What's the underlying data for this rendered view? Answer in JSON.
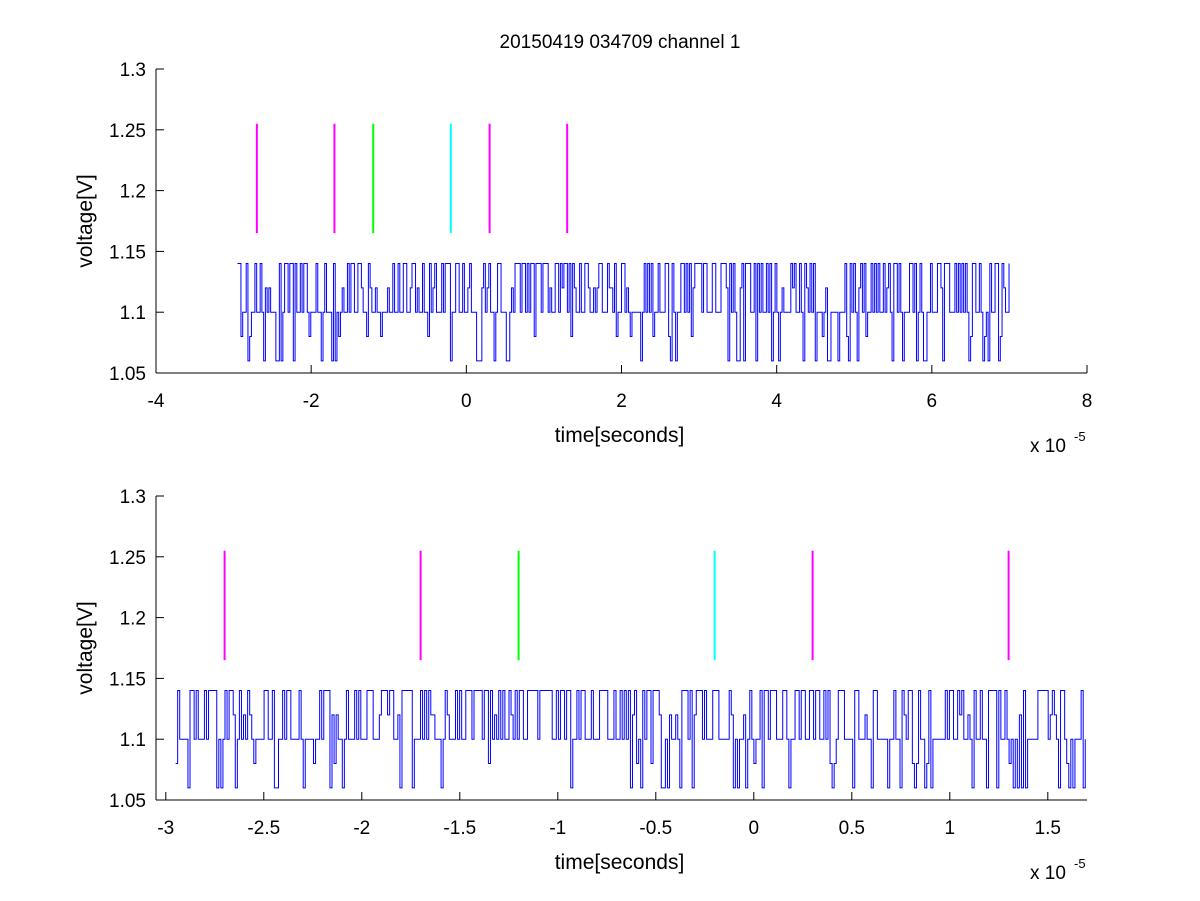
{
  "figure": {
    "title": "20150419 034709 channel 1"
  },
  "chart_data": [
    {
      "type": "line",
      "title": "20150419 034709 channel 1",
      "xlabel": "time[seconds]",
      "ylabel": "voltage[V]",
      "x_exponent_label": "x 10",
      "x_exponent_power": "-5",
      "xlim": [
        -4,
        8
      ],
      "ylim": [
        1.05,
        1.3
      ],
      "x_ticks": [
        -4,
        -2,
        0,
        2,
        4,
        6,
        8
      ],
      "x_tick_labels": [
        "-4",
        "-2",
        "0",
        "2",
        "4",
        "6",
        "8"
      ],
      "y_ticks": [
        1.05,
        1.1,
        1.15,
        1.2,
        1.25,
        1.3
      ],
      "y_tick_labels": [
        "1.05",
        "1.1",
        "1.15",
        "1.2",
        "1.25",
        "1.3"
      ],
      "grid": false,
      "signal": {
        "color": "#0000ff",
        "x_start": -2.95,
        "x_end": 7.0,
        "baseline": 1.1,
        "high": 1.14,
        "mid_high": 1.12,
        "low": 1.06,
        "mid_low": 1.08
      },
      "markers": [
        {
          "x": -2.7,
          "y0": 1.165,
          "y1": 1.255,
          "color": "#ff00ff"
        },
        {
          "x": -1.7,
          "y0": 1.165,
          "y1": 1.255,
          "color": "#ff00ff"
        },
        {
          "x": -1.2,
          "y0": 1.165,
          "y1": 1.255,
          "color": "#00ff00"
        },
        {
          "x": -0.2,
          "y0": 1.165,
          "y1": 1.255,
          "color": "#00ffff"
        },
        {
          "x": 0.3,
          "y0": 1.165,
          "y1": 1.255,
          "color": "#ff00ff"
        },
        {
          "x": 1.3,
          "y0": 1.165,
          "y1": 1.255,
          "color": "#ff00ff"
        }
      ]
    },
    {
      "type": "line",
      "title": "",
      "xlabel": "time[seconds]",
      "ylabel": "voltage[V]",
      "x_exponent_label": "x 10",
      "x_exponent_power": "-5",
      "xlim": [
        -3.05,
        1.7
      ],
      "ylim": [
        1.05,
        1.3
      ],
      "x_ticks": [
        -3,
        -2.5,
        -2,
        -1.5,
        -1,
        -0.5,
        0,
        0.5,
        1,
        1.5
      ],
      "x_tick_labels": [
        "-3",
        "-2.5",
        "-2",
        "-1.5",
        "-1",
        "-0.5",
        "0",
        "0.5",
        "1",
        "1.5"
      ],
      "y_ticks": [
        1.05,
        1.1,
        1.15,
        1.2,
        1.25,
        1.3
      ],
      "y_tick_labels": [
        "1.05",
        "1.1",
        "1.15",
        "1.2",
        "1.25",
        "1.3"
      ],
      "grid": false,
      "signal": {
        "color": "#0000ff",
        "x_start": -2.95,
        "x_end": 1.7,
        "baseline": 1.1,
        "high": 1.14,
        "mid_high": 1.12,
        "low": 1.06,
        "mid_low": 1.08
      },
      "markers": [
        {
          "x": -2.7,
          "y0": 1.165,
          "y1": 1.255,
          "color": "#ff00ff"
        },
        {
          "x": -1.7,
          "y0": 1.165,
          "y1": 1.255,
          "color": "#ff00ff"
        },
        {
          "x": -1.2,
          "y0": 1.165,
          "y1": 1.255,
          "color": "#00ff00"
        },
        {
          "x": -0.2,
          "y0": 1.165,
          "y1": 1.255,
          "color": "#00ffff"
        },
        {
          "x": 0.3,
          "y0": 1.165,
          "y1": 1.255,
          "color": "#ff00ff"
        },
        {
          "x": 1.3,
          "y0": 1.165,
          "y1": 1.255,
          "color": "#ff00ff"
        }
      ]
    }
  ]
}
